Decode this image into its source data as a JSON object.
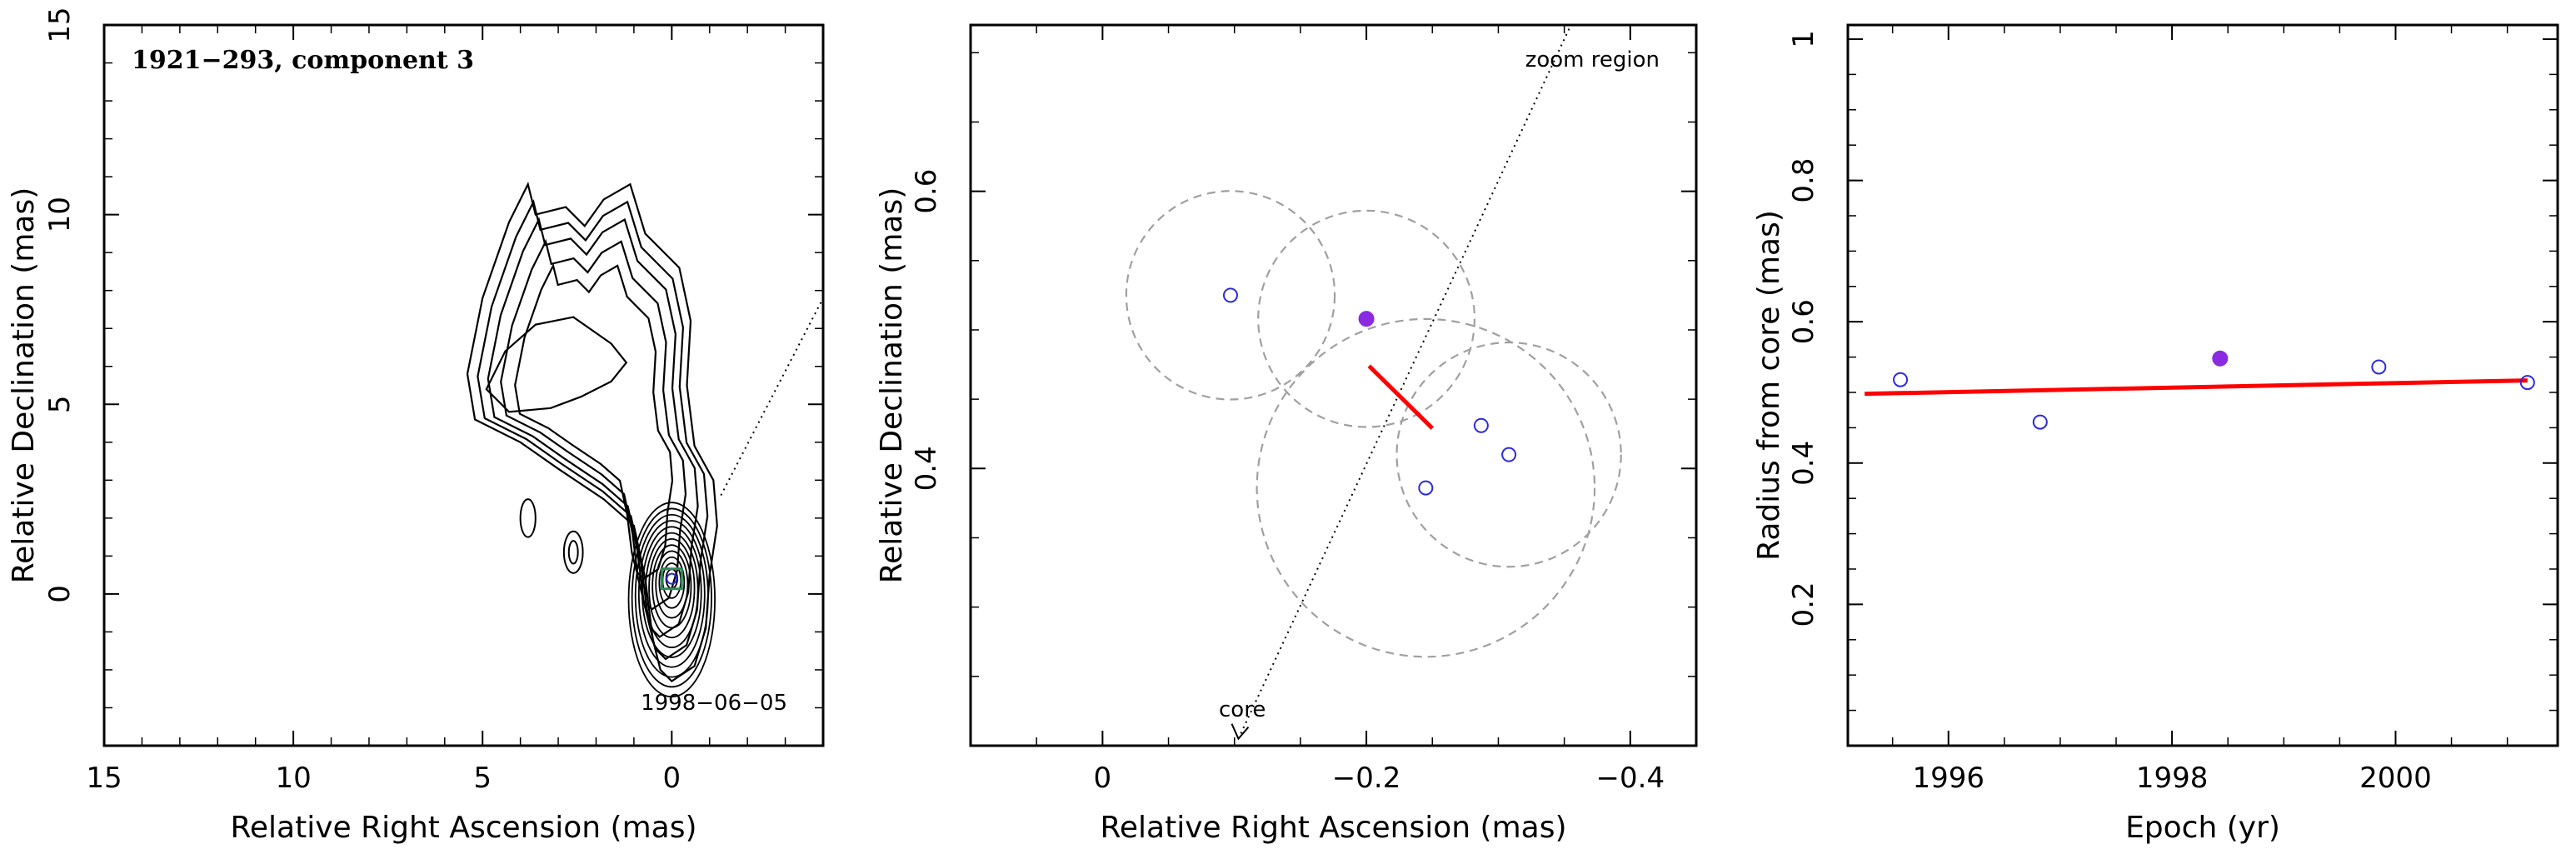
{
  "colors": {
    "frame": "#000000",
    "contour": "#000000",
    "fit_line": "#ff0000",
    "open_point": "#2a2ae0",
    "filled_point": "#8a2be2",
    "dashed_circle": "#a0a0a0",
    "model_box": "#2e8b57"
  },
  "chart_data": [
    {
      "type": "contour",
      "title": "1921−293, component 3",
      "date_label": "1998−06−05",
      "xlabel": "Relative Right Ascension (mas)",
      "ylabel": "Relative Declination (mas)",
      "xlim": [
        15,
        -4
      ],
      "ylim": [
        -4,
        15
      ],
      "x_ticks": [
        15,
        10,
        5,
        0
      ],
      "x_tick_labels": [
        "15",
        "10",
        "5",
        "0"
      ],
      "y_ticks": [
        0,
        5,
        10,
        15
      ],
      "y_tick_labels": [
        "0",
        "5",
        "10",
        "15"
      ],
      "core_position": [
        0,
        0.4
      ],
      "direction_line": {
        "from": [
          -1.3,
          2.6
        ],
        "to": [
          -4,
          7.8
        ],
        "style": "dotted"
      },
      "secondary_blob_center": [
        2.6,
        1.1
      ],
      "small_blob_center": [
        3.8,
        2.0
      ]
    },
    {
      "type": "scatter",
      "xlabel": "Relative Right Ascension (mas)",
      "ylabel": "Relative Declination (mas)",
      "xlim": [
        0.1,
        -0.45
      ],
      "ylim": [
        0.2,
        0.72
      ],
      "x_ticks": [
        0,
        -0.2,
        -0.4
      ],
      "x_tick_labels": [
        "0",
        "−0.2",
        "−0.4"
      ],
      "y_ticks": [
        0.4,
        0.6
      ],
      "y_tick_labels": [
        "0.4",
        "0.6"
      ],
      "annotations": {
        "zoom_region": "zoom region",
        "core": "core"
      },
      "points_open": [
        {
          "x": -0.097,
          "y": 0.525
        },
        {
          "x": -0.287,
          "y": 0.431
        },
        {
          "x": -0.308,
          "y": 0.41
        },
        {
          "x": -0.245,
          "y": 0.386
        }
      ],
      "points_filled": [
        {
          "x": -0.2,
          "y": 0.508
        }
      ],
      "uncertainty_circles": [
        {
          "cx": -0.097,
          "cy": 0.525,
          "r": 0.079
        },
        {
          "cx": -0.2,
          "cy": 0.508,
          "r": 0.082
        },
        {
          "cx": -0.245,
          "cy": 0.386,
          "r": 0.128
        },
        {
          "cx": -0.308,
          "cy": 0.41,
          "r": 0.085
        }
      ],
      "fit_segment": {
        "from": [
          -0.202,
          0.474
        ],
        "to": [
          -0.25,
          0.429
        ]
      },
      "direction_line": {
        "from": [
          -0.103,
          0.205
        ],
        "to": [
          -0.355,
          0.72
        ],
        "style": "dotted"
      }
    },
    {
      "type": "scatter",
      "xlabel": "Epoch (yr)",
      "ylabel": "Radius from core (mas)",
      "xlim": [
        1995.1,
        2001.45
      ],
      "ylim": [
        0,
        1.02
      ],
      "x_ticks": [
        1996,
        1998,
        2000
      ],
      "x_tick_labels": [
        "1996",
        "1998",
        "2000"
      ],
      "y_ticks": [
        0.2,
        0.4,
        0.6,
        0.8,
        1.0
      ],
      "y_tick_labels": [
        "0.2",
        "0.4",
        "0.6",
        "0.8",
        "1"
      ],
      "points_open": [
        {
          "x": 1995.57,
          "y": 0.518
        },
        {
          "x": 1996.82,
          "y": 0.458
        },
        {
          "x": 1999.85,
          "y": 0.536
        },
        {
          "x": 2001.18,
          "y": 0.514
        }
      ],
      "points_filled": [
        {
          "x": 1998.43,
          "y": 0.548
        }
      ],
      "fit_line": {
        "x": [
          1995.25,
          2001.18
        ],
        "y": [
          0.498,
          0.517
        ]
      }
    }
  ]
}
